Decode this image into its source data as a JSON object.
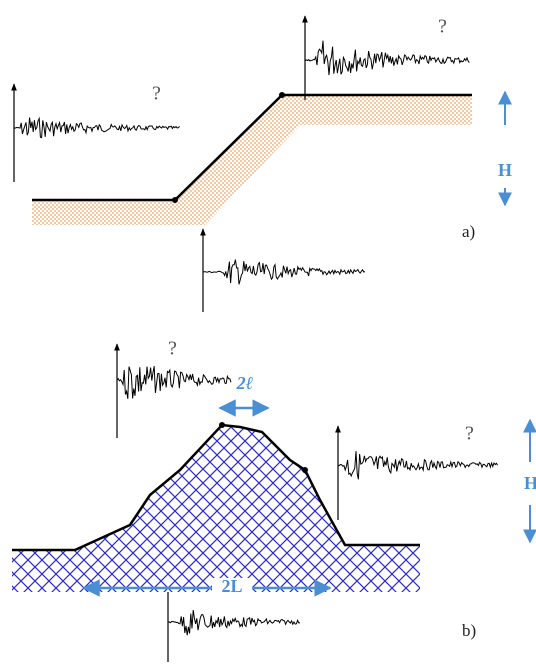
{
  "panel_a": {
    "question_left": "?",
    "question_right": "?",
    "height_label": "H",
    "label": "a)"
  },
  "panel_b": {
    "question_left": "?",
    "question_right": "?",
    "crest_width_label": "2ℓ",
    "height_label": "H",
    "base_width_label": "2L",
    "label": "b)"
  }
}
